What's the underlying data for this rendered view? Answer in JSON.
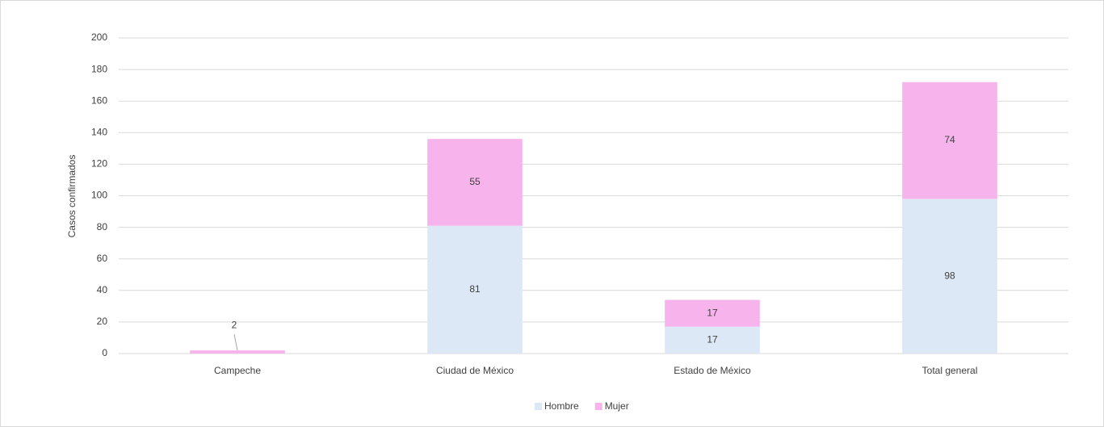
{
  "chart_data": {
    "type": "stacked_bar",
    "y_label": "Casos confirmados",
    "categories": [
      "Campeche",
      "Ciudad de México",
      "Estado de México",
      "Total general"
    ],
    "series": [
      {
        "name": "Hombre",
        "color": "#dce8f5",
        "values": [
          null,
          81,
          17,
          98
        ]
      },
      {
        "name": "Mujer",
        "color": "#f7b4ec",
        "values": [
          2,
          55,
          17,
          74
        ]
      }
    ],
    "ylim": [
      0,
      200
    ],
    "yticks": [
      0,
      20,
      40,
      60,
      80,
      100,
      120,
      140,
      160,
      180,
      200
    ],
    "grid": true,
    "legend": "bottom"
  }
}
